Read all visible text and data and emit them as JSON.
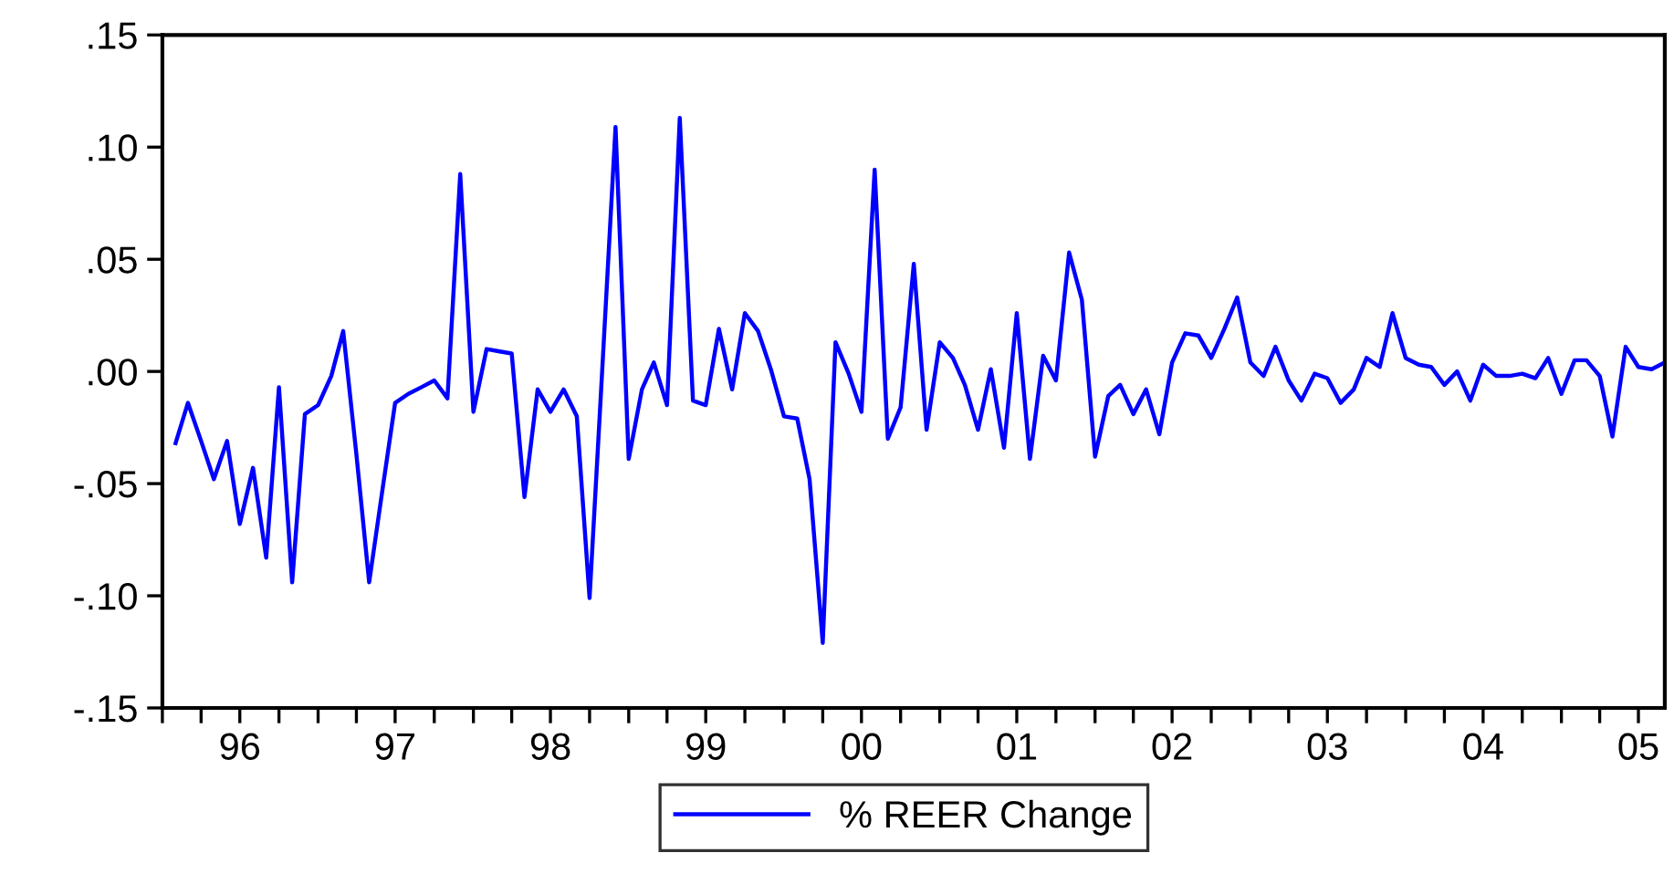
{
  "chart_data": {
    "type": "line",
    "x": [
      "1996-02",
      "1996-03",
      "1996-04",
      "1996-05",
      "1996-06",
      "1996-07",
      "1996-08",
      "1996-09",
      "1996-10",
      "1996-11",
      "1996-12",
      "1997-01",
      "1997-02",
      "1997-03",
      "1997-04",
      "1997-05",
      "1997-06",
      "1997-07",
      "1997-08",
      "1997-09",
      "1997-10",
      "1997-11",
      "1997-12",
      "1998-01",
      "1998-02",
      "1998-03",
      "1998-04",
      "1998-05",
      "1998-06",
      "1998-07",
      "1998-08",
      "1998-09",
      "1998-10",
      "1998-11",
      "1998-12",
      "1999-01",
      "1999-02",
      "1999-03",
      "1999-04",
      "1999-05",
      "1999-06",
      "1999-07",
      "1999-08",
      "1999-09",
      "1999-10",
      "1999-11",
      "1999-12",
      "2000-01",
      "2000-02",
      "2000-03",
      "2000-04",
      "2000-05",
      "2000-06",
      "2000-07",
      "2000-08",
      "2000-09",
      "2000-10",
      "2000-11",
      "2000-12",
      "2001-01",
      "2001-02",
      "2001-03",
      "2001-04",
      "2001-05",
      "2001-06",
      "2001-07",
      "2001-08",
      "2001-09",
      "2001-10",
      "2001-11",
      "2001-12",
      "2002-01",
      "2002-02",
      "2002-03",
      "2002-04",
      "2002-05",
      "2002-06",
      "2002-07",
      "2002-08",
      "2002-09",
      "2002-10",
      "2002-11",
      "2002-12",
      "2003-01",
      "2003-02",
      "2003-03",
      "2003-04",
      "2003-05",
      "2003-06",
      "2003-07",
      "2003-08",
      "2003-09",
      "2003-10",
      "2003-11",
      "2003-12",
      "2004-01",
      "2004-02",
      "2004-03",
      "2004-04",
      "2004-05",
      "2004-06",
      "2004-07",
      "2004-08",
      "2004-09",
      "2004-10",
      "2004-11",
      "2004-12",
      "2005-01",
      "2005-02",
      "2005-03",
      "2005-04",
      "2005-05",
      "2005-06",
      "2005-07",
      "2005-08",
      "2005-09"
    ],
    "series": [
      {
        "name": "% REER Change",
        "color": "#0000ff",
        "values": [
          -0.032,
          -0.014,
          -0.031,
          -0.048,
          -0.031,
          -0.068,
          -0.043,
          -0.083,
          -0.007,
          -0.094,
          -0.019,
          -0.015,
          -0.002,
          0.018,
          -0.037,
          -0.094,
          -0.053,
          -0.014,
          -0.01,
          -0.007,
          -0.004,
          -0.012,
          0.088,
          -0.018,
          0.01,
          0.009,
          0.008,
          -0.056,
          -0.008,
          -0.018,
          -0.008,
          -0.02,
          -0.101,
          0.005,
          0.109,
          -0.039,
          -0.008,
          0.004,
          -0.015,
          0.113,
          -0.013,
          -0.015,
          0.019,
          -0.008,
          0.026,
          0.018,
          0.001,
          -0.02,
          -0.021,
          -0.048,
          -0.121,
          0.013,
          -0.001,
          -0.018,
          0.09,
          -0.03,
          -0.016,
          0.048,
          -0.026,
          0.013,
          0.006,
          -0.006,
          -0.026,
          0.001,
          -0.034,
          0.026,
          -0.039,
          0.007,
          -0.004,
          0.053,
          0.032,
          -0.038,
          -0.011,
          -0.006,
          -0.019,
          -0.008,
          -0.028,
          0.004,
          0.017,
          0.016,
          0.006,
          0.019,
          0.033,
          0.004,
          -0.002,
          0.011,
          -0.004,
          -0.013,
          -0.001,
          -0.003,
          -0.014,
          -0.008,
          0.006,
          0.002,
          0.026,
          0.006,
          0.003,
          0.002,
          -0.006,
          0.0,
          -0.013,
          0.003,
          -0.002,
          -0.002,
          -0.001,
          -0.003,
          0.006,
          -0.01,
          0.005,
          0.005,
          -0.002,
          -0.029,
          0.011,
          0.002,
          0.001,
          0.004
        ]
      }
    ],
    "xlim": [
      "1996-01",
      "2005-09"
    ],
    "xticks": [
      {
        "value": "1996-01",
        "label": null
      },
      {
        "value": "1996-04",
        "label": null
      },
      {
        "value": "1996-07",
        "label": "96"
      },
      {
        "value": "1996-10",
        "label": null
      },
      {
        "value": "1997-01",
        "label": null
      },
      {
        "value": "1997-04",
        "label": null
      },
      {
        "value": "1997-07",
        "label": "97"
      },
      {
        "value": "1997-10",
        "label": null
      },
      {
        "value": "1998-01",
        "label": null
      },
      {
        "value": "1998-04",
        "label": null
      },
      {
        "value": "1998-07",
        "label": "98"
      },
      {
        "value": "1998-10",
        "label": null
      },
      {
        "value": "1999-01",
        "label": null
      },
      {
        "value": "1999-04",
        "label": null
      },
      {
        "value": "1999-07",
        "label": "99"
      },
      {
        "value": "1999-10",
        "label": null
      },
      {
        "value": "2000-01",
        "label": null
      },
      {
        "value": "2000-04",
        "label": null
      },
      {
        "value": "2000-07",
        "label": "00"
      },
      {
        "value": "2000-10",
        "label": null
      },
      {
        "value": "2001-01",
        "label": null
      },
      {
        "value": "2001-04",
        "label": null
      },
      {
        "value": "2001-07",
        "label": "01"
      },
      {
        "value": "2001-10",
        "label": null
      },
      {
        "value": "2002-01",
        "label": null
      },
      {
        "value": "2002-04",
        "label": null
      },
      {
        "value": "2002-07",
        "label": "02"
      },
      {
        "value": "2002-10",
        "label": null
      },
      {
        "value": "2003-01",
        "label": null
      },
      {
        "value": "2003-04",
        "label": null
      },
      {
        "value": "2003-07",
        "label": "03"
      },
      {
        "value": "2003-10",
        "label": null
      },
      {
        "value": "2004-01",
        "label": null
      },
      {
        "value": "2004-04",
        "label": null
      },
      {
        "value": "2004-07",
        "label": "04"
      },
      {
        "value": "2004-10",
        "label": null
      },
      {
        "value": "2005-01",
        "label": null
      },
      {
        "value": "2005-04",
        "label": null
      },
      {
        "value": "2005-07",
        "label": "05"
      }
    ],
    "ylim": [
      -0.15,
      0.15
    ],
    "yticks": [
      {
        "value": -0.15,
        "label": "-.15"
      },
      {
        "value": -0.1,
        "label": "-.10"
      },
      {
        "value": -0.05,
        "label": "-.05"
      },
      {
        "value": 0.0,
        "label": ".00"
      },
      {
        "value": 0.05,
        "label": ".05"
      },
      {
        "value": 0.1,
        "label": ".10"
      },
      {
        "value": 0.15,
        "label": ".15"
      }
    ],
    "legend": "bottom",
    "marker": "none",
    "line_style": "solid"
  }
}
